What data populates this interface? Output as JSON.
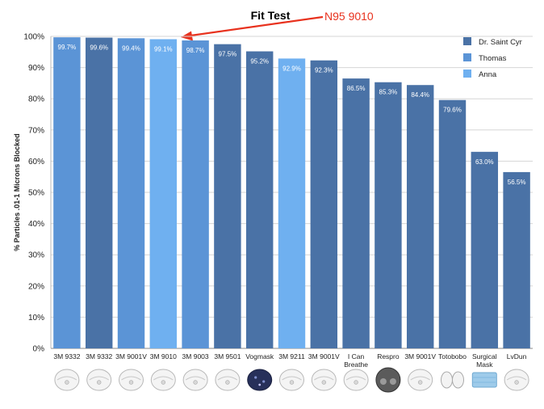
{
  "annotation": {
    "text": "N95 9010",
    "color": "#e8321e"
  },
  "chart_data": {
    "type": "bar",
    "title": "Fit Test",
    "xlabel": "",
    "ylabel": "% Particles .01-1 Microns Blocked",
    "ylim": [
      0,
      100
    ],
    "yticks": [
      "0%",
      "10%",
      "20%",
      "30%",
      "40%",
      "50%",
      "60%",
      "70%",
      "80%",
      "90%",
      "100%"
    ],
    "grid": true,
    "legend_position": "top-right",
    "legend": [
      {
        "name": "Dr. Saint Cyr",
        "color": "#4a72a6"
      },
      {
        "name": "Thomas",
        "color": "#5b94d6"
      },
      {
        "name": "Anna",
        "color": "#6fb0f0"
      }
    ],
    "categories": [
      [
        "3M 9332"
      ],
      [
        "3M 9332"
      ],
      [
        "3M 9001V"
      ],
      [
        "3M 9010"
      ],
      [
        "3M 9003"
      ],
      [
        "3M 9501"
      ],
      [
        "Vogmask"
      ],
      [
        "3M 9211"
      ],
      [
        "3M 9001V"
      ],
      [
        "I Can",
        "Breathe"
      ],
      [
        "Respro"
      ],
      [
        "3M 9001V"
      ],
      [
        "Totobobo"
      ],
      [
        "Surgical",
        "Mask"
      ],
      [
        "LvDun"
      ]
    ],
    "values": [
      99.7,
      99.6,
      99.4,
      99.1,
      98.7,
      97.5,
      95.2,
      92.9,
      92.3,
      86.5,
      85.3,
      84.4,
      79.6,
      63.0,
      56.5
    ],
    "data_labels": [
      "99.7%",
      "99.6%",
      "99.4%",
      "99.1%",
      "98.7%",
      "97.5%",
      "95.2%",
      "92.9%",
      "92.3%",
      "86.5%",
      "85.3%",
      "84.4%",
      "79.6%",
      "63.0%",
      "56.5%"
    ],
    "tester": [
      "Thomas",
      "Dr. Saint Cyr",
      "Thomas",
      "Anna",
      "Thomas",
      "Dr. Saint Cyr",
      "Dr. Saint Cyr",
      "Anna",
      "Dr. Saint Cyr",
      "Dr. Saint Cyr",
      "Dr. Saint Cyr",
      "Dr. Saint Cyr",
      "Dr. Saint Cyr",
      "Dr. Saint Cyr",
      "Dr. Saint Cyr"
    ]
  }
}
